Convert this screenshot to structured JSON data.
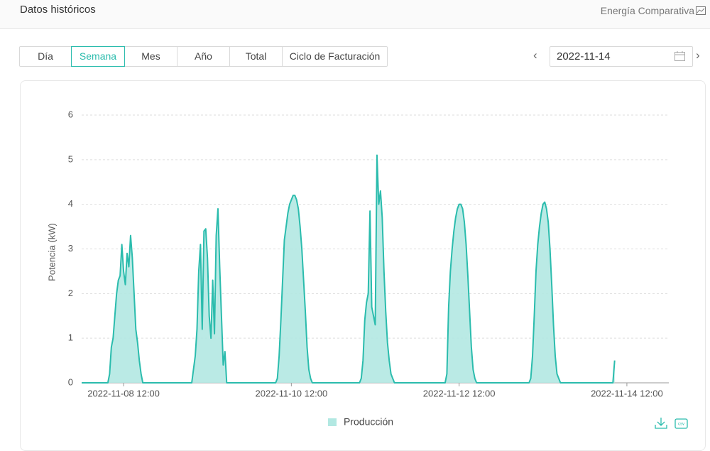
{
  "header": {
    "title": "Datos históricos",
    "link": "Energía Comparativa"
  },
  "tabs": [
    "Día",
    "Semana",
    "Mes",
    "Año",
    "Total",
    "Ciclo de Facturación"
  ],
  "selected_tab": 1,
  "date_picker": "2022-11-14",
  "chart_data": {
    "type": "area",
    "y_label": "Potencia  (kW)",
    "x": [
      "2022-11-08 00:00",
      "2022-11-08 07:30",
      "2022-11-08 08:00",
      "2022-11-08 08:30",
      "2022-11-08 09:00",
      "2022-11-08 09:30",
      "2022-11-08 10:00",
      "2022-11-08 10:30",
      "2022-11-08 11:00",
      "2022-11-08 11:30",
      "2022-11-08 12:00",
      "2022-11-08 12:30",
      "2022-11-08 13:00",
      "2022-11-08 13:30",
      "2022-11-08 14:00",
      "2022-11-08 14:30",
      "2022-11-08 15:00",
      "2022-11-08 15:30",
      "2022-11-08 16:00",
      "2022-11-08 16:30",
      "2022-11-08 17:00",
      "2022-11-08 17:30",
      "2022-11-09 07:30",
      "2022-11-09 08:00",
      "2022-11-09 08:30",
      "2022-11-09 09:00",
      "2022-11-09 09:30",
      "2022-11-09 10:00",
      "2022-11-09 10:30",
      "2022-11-09 11:00",
      "2022-11-09 11:30",
      "2022-11-09 12:00",
      "2022-11-09 12:30",
      "2022-11-09 13:00",
      "2022-11-09 13:30",
      "2022-11-09 14:00",
      "2022-11-09 14:30",
      "2022-11-09 15:00",
      "2022-11-09 15:30",
      "2022-11-09 16:00",
      "2022-11-09 16:30",
      "2022-11-09 17:00",
      "2022-11-09 17:30",
      "2022-11-10 07:30",
      "2022-11-10 08:00",
      "2022-11-10 08:30",
      "2022-11-10 09:00",
      "2022-11-10 09:30",
      "2022-11-10 10:00",
      "2022-11-10 10:30",
      "2022-11-10 11:00",
      "2022-11-10 11:30",
      "2022-11-10 12:00",
      "2022-11-10 12:30",
      "2022-11-10 13:00",
      "2022-11-10 13:30",
      "2022-11-10 14:00",
      "2022-11-10 14:30",
      "2022-11-10 15:00",
      "2022-11-10 15:30",
      "2022-11-10 16:00",
      "2022-11-10 16:30",
      "2022-11-10 17:00",
      "2022-11-10 17:30",
      "2022-11-10 18:00",
      "2022-11-11 07:30",
      "2022-11-11 08:00",
      "2022-11-11 08:30",
      "2022-11-11 09:00",
      "2022-11-11 09:30",
      "2022-11-11 10:00",
      "2022-11-11 10:30",
      "2022-11-11 11:00",
      "2022-11-11 11:30",
      "2022-11-11 12:00",
      "2022-11-11 12:30",
      "2022-11-11 13:00",
      "2022-11-11 13:30",
      "2022-11-11 14:00",
      "2022-11-11 14:30",
      "2022-11-11 15:00",
      "2022-11-11 15:30",
      "2022-11-11 16:00",
      "2022-11-11 16:30",
      "2022-11-11 17:00",
      "2022-11-11 17:30",
      "2022-11-12 08:00",
      "2022-11-12 08:30",
      "2022-11-12 09:00",
      "2022-11-12 09:30",
      "2022-11-12 10:00",
      "2022-11-12 10:30",
      "2022-11-12 11:00",
      "2022-11-12 11:30",
      "2022-11-12 12:00",
      "2022-11-12 12:30",
      "2022-11-12 13:00",
      "2022-11-12 13:30",
      "2022-11-12 14:00",
      "2022-11-12 14:30",
      "2022-11-12 15:00",
      "2022-11-12 15:30",
      "2022-11-12 16:00",
      "2022-11-12 16:30",
      "2022-11-12 17:00",
      "2022-11-13 08:00",
      "2022-11-13 08:30",
      "2022-11-13 09:00",
      "2022-11-13 09:30",
      "2022-11-13 10:00",
      "2022-11-13 10:30",
      "2022-11-13 11:00",
      "2022-11-13 11:30",
      "2022-11-13 12:00",
      "2022-11-13 12:30",
      "2022-11-13 13:00",
      "2022-11-13 13:30",
      "2022-11-13 14:00",
      "2022-11-13 14:30",
      "2022-11-13 15:00",
      "2022-11-13 15:30",
      "2022-11-13 16:00",
      "2022-11-13 16:30",
      "2022-11-13 17:00",
      "2022-11-14 08:00",
      "2022-11-14 08:30"
    ],
    "series": [
      {
        "name": "Producción",
        "color": "#2bbcad",
        "fill": "#b2e8e2",
        "values": [
          0,
          0,
          0.2,
          0.8,
          1.0,
          1.5,
          2.0,
          2.3,
          2.4,
          3.1,
          2.5,
          2.2,
          2.9,
          2.6,
          3.3,
          2.8,
          2.0,
          1.2,
          0.9,
          0.5,
          0.2,
          0,
          0,
          0.3,
          0.6,
          1.2,
          2.5,
          3.1,
          1.2,
          3.4,
          3.45,
          2.8,
          1.5,
          1.0,
          2.3,
          1.1,
          3.3,
          3.9,
          2.6,
          1.5,
          0.4,
          0.7,
          0,
          0,
          0.1,
          0.6,
          1.4,
          2.3,
          3.2,
          3.5,
          3.8,
          4.0,
          4.1,
          4.2,
          4.2,
          4.1,
          3.9,
          3.5,
          3.0,
          2.3,
          1.6,
          0.8,
          0.3,
          0.1,
          0,
          0,
          0.1,
          0.5,
          1.4,
          1.8,
          2.0,
          3.85,
          1.7,
          1.5,
          1.3,
          5.1,
          4.0,
          4.3,
          3.7,
          2.5,
          1.6,
          0.9,
          0.5,
          0.2,
          0.1,
          0,
          0,
          0.2,
          1.7,
          2.5,
          3.0,
          3.4,
          3.7,
          3.9,
          4.0,
          4.0,
          3.9,
          3.6,
          3.1,
          2.4,
          1.6,
          0.8,
          0.3,
          0.1,
          0,
          0,
          0.1,
          0.6,
          1.5,
          2.5,
          3.1,
          3.5,
          3.8,
          4.0,
          4.05,
          3.9,
          3.6,
          3.0,
          2.2,
          1.3,
          0.6,
          0.2,
          0.1,
          0,
          0,
          0.5
        ]
      }
    ],
    "xlim": [
      "2022-11-08 00:00",
      "2022-11-15 00:00"
    ],
    "xticks": [
      "2022-11-08 12:00",
      "2022-11-10 12:00",
      "2022-11-12 12:00",
      "2022-11-14 12:00"
    ],
    "ylim": [
      0,
      6
    ],
    "yticks": [
      0,
      1,
      2,
      3,
      4,
      5,
      6
    ],
    "grid": true,
    "legend": "bottom"
  }
}
